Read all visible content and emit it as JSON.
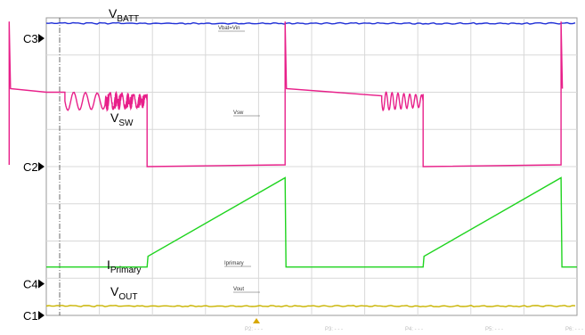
{
  "chart_data": {
    "type": "line",
    "title": "",
    "xlabel": "",
    "ylabel": "",
    "grid": true,
    "x_divisions": 10,
    "y_divisions": 8,
    "time_period_divisions": 5.2,
    "channels": [
      {
        "id": "C3",
        "name": "VBATT",
        "name_main": "V",
        "name_sub": "BATT",
        "probe_label": "Vbat=Vin",
        "color": "#1f2fd6",
        "shape": "dc",
        "level_div": 0.15
      },
      {
        "id": "C2",
        "name": "VSW",
        "name_main": "V",
        "name_sub": "SW",
        "probe_label": "Vsw",
        "color": "#e8208a",
        "shape": "switch",
        "high_div": 2.0,
        "low_div": 4.0,
        "ring_amplitude_div": 0.25,
        "ring_cycles": 7,
        "spike_top_div": 0.1,
        "on_fraction": 0.5
      },
      {
        "id": "C4",
        "name": "IPrimary",
        "name_main": "I",
        "name_sub": "Primary",
        "probe_label": "Iprimary",
        "color": "#1fd41f",
        "shape": "ramp",
        "base_div": 6.7,
        "peak_div": 4.3,
        "on_fraction": 0.5
      },
      {
        "id": "C1",
        "name": "VOUT",
        "name_main": "V",
        "name_sub": "OUT",
        "probe_label": "Vout",
        "color": "#c9b400",
        "shape": "dc",
        "level_div": 7.75
      }
    ],
    "markers": [
      "C3",
      "C2",
      "C4",
      "C1"
    ],
    "footer_labels": [
      "P2: - - -",
      "P3: - - -",
      "P4: - - -",
      "P5: - - -",
      "P6: - - -"
    ]
  }
}
